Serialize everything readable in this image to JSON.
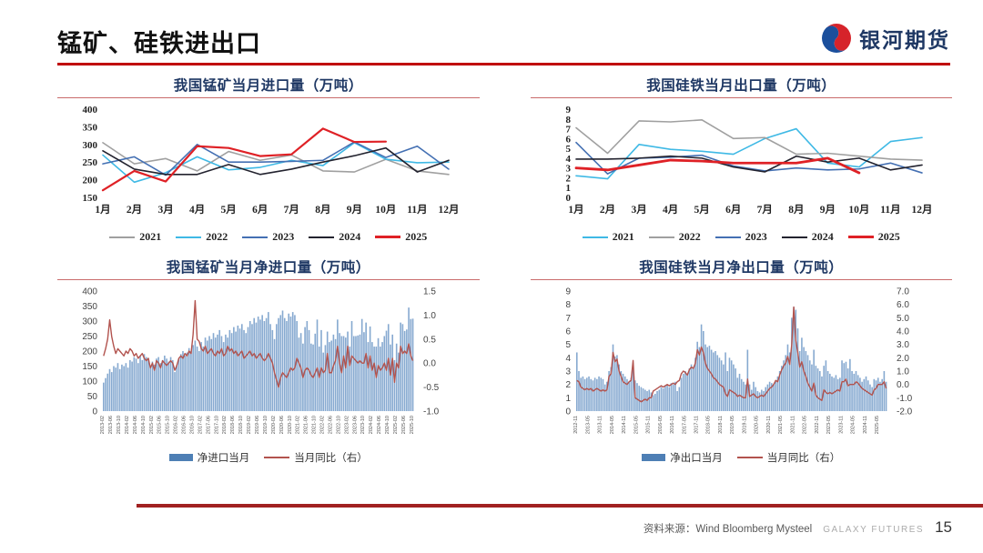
{
  "header": {
    "title": "锰矿、硅铁进出口",
    "logo_text": "银河期货"
  },
  "footer": {
    "source": "资料来源：Wind Bloomberg Mysteel",
    "brand": "GALAXY FUTURES",
    "page_number": "15"
  },
  "colors": {
    "accent_red": "#C00000",
    "title_navy": "#1F3864",
    "logo_blue": "#1B4F9C",
    "logo_red": "#D6232A"
  },
  "chart_data": [
    {
      "type": "line",
      "title": "我国锰矿当月进口量（万吨）",
      "categories": [
        "1月",
        "2月",
        "3月",
        "4月",
        "5月",
        "6月",
        "7月",
        "8月",
        "9月",
        "10月",
        "11月",
        "12月"
      ],
      "ylim": [
        150,
        400
      ],
      "yticks": [
        400,
        350,
        300,
        250,
        200,
        150
      ],
      "series": [
        {
          "name": "2021",
          "color": "#A0A0A0",
          "values": [
            305,
            245,
            260,
            225,
            280,
            255,
            270,
            225,
            222,
            258,
            225,
            215
          ]
        },
        {
          "name": "2022",
          "color": "#3FB9E5",
          "values": [
            270,
            193,
            220,
            265,
            228,
            235,
            255,
            240,
            305,
            258,
            248,
            250
          ]
        },
        {
          "name": "2023",
          "color": "#4470B3",
          "values": [
            245,
            265,
            213,
            300,
            250,
            250,
            252,
            255,
            307,
            263,
            295,
            230
          ]
        },
        {
          "name": "2024",
          "color": "#23232F",
          "values": [
            282,
            230,
            215,
            215,
            243,
            215,
            230,
            250,
            268,
            290,
            222,
            255
          ]
        },
        {
          "name": "2025",
          "color": "#DF2126",
          "width": 2.2,
          "values": [
            170,
            225,
            195,
            295,
            290,
            267,
            272,
            345,
            307,
            308
          ]
        }
      ]
    },
    {
      "type": "line",
      "title": "我国硅铁当月出口量（万吨）",
      "categories": [
        "1月",
        "2月",
        "3月",
        "4月",
        "5月",
        "6月",
        "7月",
        "8月",
        "9月",
        "10月",
        "11月",
        "12月"
      ],
      "ylim": [
        0,
        9
      ],
      "yticks": [
        9,
        8,
        7,
        6,
        5,
        4,
        3,
        2,
        1,
        0
      ],
      "series": [
        {
          "name": "2021",
          "color": "#3FB9E5",
          "values": [
            2.2,
            1.9,
            5.4,
            4.9,
            4.7,
            4.4,
            6.0,
            7.0,
            3.5,
            3.1,
            5.7,
            6.1
          ]
        },
        {
          "name": "2022",
          "color": "#A0A0A0",
          "values": [
            7.1,
            4.5,
            7.8,
            7.7,
            7.9,
            6.0,
            6.1,
            4.4,
            4.5,
            4.2,
            3.9,
            3.8
          ]
        },
        {
          "name": "2023",
          "color": "#4470B3",
          "values": [
            5.6,
            2.4,
            4.0,
            4.1,
            4.3,
            3.2,
            2.7,
            3.0,
            2.8,
            2.9,
            3.5,
            2.5
          ]
        },
        {
          "name": "2024",
          "color": "#23232F",
          "values": [
            3.9,
            3.9,
            4.0,
            4.2,
            4.0,
            3.1,
            2.6,
            4.2,
            3.6,
            4.0,
            2.8,
            3.3
          ]
        },
        {
          "name": "2025",
          "color": "#DF2126",
          "width": 2.8,
          "values": [
            3.0,
            2.8,
            3.3,
            3.8,
            3.7,
            3.5,
            3.5,
            3.5,
            4.0,
            2.5
          ]
        }
      ]
    },
    {
      "type": "combo",
      "title": "我国锰矿当月净进口量（万吨）",
      "left_ylim": [
        0,
        400
      ],
      "left_yticks": [
        "400",
        "350",
        "300",
        "250",
        "200",
        "150",
        "100",
        "50",
        "0"
      ],
      "right_ylim": [
        -1.0,
        1.5
      ],
      "right_yticks": [
        "1.5",
        "1.0",
        "0.5",
        "0.0",
        "-0.5",
        "-1.0"
      ],
      "tick_every": 4,
      "x_tick_labels": [
        "2013-02",
        "2013-06",
        "2013-10",
        "2014-02",
        "2014-06",
        "2014-10",
        "2015-02",
        "2015-06",
        "2015-10",
        "2016-02",
        "2016-06",
        "2016-10",
        "2017-02",
        "2017-06",
        "2017-10",
        "2018-02",
        "2018-06",
        "2018-10",
        "2019-02",
        "2019-06",
        "2019-10",
        "2020-02",
        "2020-06",
        "2020-10",
        "2021-02",
        "2021-06",
        "2021-10",
        "2022-02",
        "2022-06",
        "2022-10",
        "2023-02",
        "2023-06",
        "2023-10",
        "2024-02",
        "2024-06",
        "2024-10",
        "2025-02",
        "2025-06",
        "2025-10"
      ],
      "bar_color": "#86A9D0",
      "bar_legend_color": "#4E7FB5",
      "line_color": "#B2534E",
      "legend_bar": "净进口当月",
      "legend_line": "当月同比（右）",
      "bars": [
        95,
        110,
        125,
        140,
        130,
        150,
        145,
        160,
        140,
        155,
        150,
        160,
        145,
        170,
        165,
        180,
        175,
        160,
        185,
        170,
        190,
        180,
        175,
        150,
        165,
        155,
        175,
        180,
        160,
        170,
        185,
        175,
        165,
        180,
        170,
        130,
        155,
        175,
        190,
        200,
        185,
        195,
        210,
        200,
        220,
        235,
        215,
        200,
        230,
        215,
        245,
        235,
        250,
        240,
        260,
        245,
        255,
        270,
        250,
        230,
        255,
        245,
        270,
        260,
        280,
        265,
        285,
        275,
        290,
        270,
        260,
        280,
        300,
        290,
        310,
        295,
        315,
        305,
        320,
        300,
        310,
        330,
        290,
        270,
        240,
        290,
        310,
        320,
        335,
        310,
        300,
        325,
        315,
        330,
        320,
        300,
        245,
        260,
        225,
        280,
        300,
        270,
        225,
        222,
        258,
        305,
        215,
        270,
        195,
        220,
        265,
        230,
        235,
        255,
        240,
        305,
        260,
        250,
        250,
        245,
        265,
        215,
        300,
        250,
        250,
        252,
        255,
        307,
        263,
        295,
        230,
        282,
        230,
        215,
        215,
        243,
        215,
        230,
        250,
        268,
        290,
        222,
        255,
        170,
        225,
        195,
        295,
        290,
        267,
        272,
        345,
        307,
        308
      ],
      "line": [
        0.15,
        0.3,
        0.5,
        0.9,
        0.55,
        0.35,
        0.2,
        0.3,
        0.25,
        0.2,
        0.15,
        0.25,
        0.2,
        0.3,
        0.25,
        0.15,
        0.2,
        0.1,
        0.15,
        0.2,
        0.1,
        0.05,
        0.1,
        -0.1,
        0.0,
        -0.15,
        0.05,
        0.0,
        -0.1,
        0.05,
        0.0,
        -0.05,
        0.0,
        0.05,
        0.0,
        -0.15,
        -0.05,
        0.1,
        0.15,
        0.1,
        0.2,
        0.15,
        0.25,
        0.2,
        0.6,
        1.3,
        0.5,
        0.45,
        0.3,
        0.25,
        0.35,
        0.2,
        0.25,
        0.3,
        0.2,
        0.15,
        0.25,
        0.2,
        0.3,
        0.15,
        0.2,
        0.35,
        0.25,
        0.3,
        0.2,
        0.25,
        0.15,
        0.2,
        0.25,
        0.1,
        0.15,
        0.2,
        0.25,
        0.15,
        0.2,
        0.1,
        0.15,
        0.2,
        0.1,
        0.05,
        0.1,
        0.2,
        0.1,
        0.0,
        -0.2,
        -0.35,
        -0.5,
        -0.3,
        -0.2,
        -0.25,
        -0.3,
        -0.2,
        -0.1,
        -0.15,
        -0.1,
        0.1,
        0.0,
        -0.1,
        -0.3,
        -0.15,
        -0.1,
        -0.15,
        -0.25,
        -0.3,
        -0.2,
        -0.1,
        -0.3,
        -0.1,
        -0.2,
        -0.15,
        0.2,
        -0.2,
        -0.2,
        -0.05,
        0.05,
        0.35,
        0.0,
        -0.2,
        0.15,
        -0.1,
        0.35,
        -0.05,
        0.15,
        0.1,
        0.05,
        0.0,
        0.05,
        0.0,
        0.0,
        0.2,
        -0.1,
        0.15,
        -0.15,
        0.0,
        -0.3,
        -0.05,
        -0.15,
        -0.1,
        0.0,
        -0.15,
        0.1,
        -0.25,
        0.1,
        -0.4,
        0.0,
        -0.1,
        0.35,
        0.2,
        0.25,
        0.2,
        0.4,
        0.15,
        0.05
      ]
    },
    {
      "type": "combo",
      "title": "我国硅铁当月净出口量（万吨）",
      "left_ylim": [
        0,
        9
      ],
      "left_yticks": [
        "9",
        "8",
        "7",
        "6",
        "5",
        "4",
        "3",
        "2",
        "1",
        "0"
      ],
      "right_ylim": [
        -2.0,
        7.0
      ],
      "right_yticks": [
        "7.0",
        "6.0",
        "5.0",
        "4.0",
        "3.0",
        "2.0",
        "1.0",
        "0.0",
        "-1.0",
        "-2.0"
      ],
      "tick_every": 6,
      "x_tick_labels": [
        "2012-11",
        "2013-05",
        "2013-11",
        "2014-05",
        "2014-11",
        "2015-05",
        "2015-11",
        "2016-05",
        "2016-11",
        "2017-05",
        "2017-11",
        "2018-05",
        "2018-11",
        "2019-05",
        "2019-11",
        "2020-05",
        "2020-11",
        "2021-05",
        "2021-11",
        "2022-05",
        "2022-11",
        "2023-05",
        "2023-11",
        "2024-05",
        "2024-11",
        "2025-05"
      ],
      "bar_color": "#86A9D0",
      "bar_legend_color": "#4E7FB5",
      "line_color": "#B2534E",
      "legend_bar": "净出口当月",
      "legend_line": "当月同比（右）",
      "bars": [
        4.4,
        3.0,
        2.5,
        2.6,
        2.4,
        2.5,
        2.6,
        2.4,
        2.3,
        2.5,
        2.4,
        2.6,
        2.5,
        2.4,
        2.0,
        2.2,
        3.0,
        3.3,
        5.0,
        4.1,
        4.2,
        3.5,
        3.0,
        2.8,
        2.6,
        2.4,
        2.2,
        2.5,
        3.6,
        2.3,
        2.1,
        1.9,
        1.8,
        1.7,
        1.6,
        1.5,
        1.6,
        1.4,
        1.2,
        1.3,
        1.5,
        1.6,
        1.8,
        1.7,
        1.9,
        2.0,
        1.8,
        2.1,
        2.0,
        2.2,
        1.5,
        1.8,
        2.5,
        2.8,
        3.0,
        2.7,
        3.2,
        3.5,
        3.3,
        4.0,
        5.2,
        4.8,
        6.5,
        6.0,
        5.0,
        4.8,
        4.9,
        4.6,
        4.4,
        4.5,
        4.2,
        4.0,
        3.8,
        3.5,
        4.4,
        3.0,
        4.0,
        3.8,
        3.5,
        3.2,
        2.5,
        2.8,
        2.4,
        2.2,
        2.0,
        4.6,
        2.0,
        1.6,
        2.2,
        1.8,
        1.5,
        1.4,
        1.6,
        1.5,
        1.8,
        2.0,
        2.2,
        2.1,
        2.0,
        2.2,
        2.6,
        3.0,
        3.4,
        3.8,
        4.2,
        5.0,
        4.4,
        7.0,
        7.8,
        7.6,
        6.2,
        4.5,
        5.5,
        4.8,
        4.5,
        4.2,
        3.8,
        3.5,
        4.6,
        3.4,
        3.2,
        3.0,
        2.6,
        3.4,
        3.8,
        3.0,
        2.8,
        2.6,
        2.5,
        2.7,
        2.4,
        2.5,
        3.8,
        3.6,
        3.7,
        3.2,
        3.9,
        3.0,
        2.8,
        3.0,
        2.7,
        2.5,
        2.2,
        2.4,
        2.6,
        2.3,
        2.0,
        1.8,
        2.4,
        2.3,
        2.5,
        2.2,
        2.4,
        3.0,
        2.2
      ],
      "line": [
        0.3,
        0.2,
        -0.2,
        -0.3,
        -0.4,
        -0.3,
        -0.4,
        -0.3,
        -0.5,
        -0.4,
        -0.3,
        -0.4,
        -0.5,
        -0.4,
        -0.5,
        -0.4,
        0.6,
        0.8,
        2.4,
        1.7,
        1.9,
        1.0,
        0.6,
        0.2,
        0.1,
        0.0,
        0.2,
        0.3,
        1.8,
        -1.0,
        -1.1,
        -1.2,
        -1.3,
        -1.2,
        -1.1,
        -1.2,
        -1.0,
        -1.0,
        -0.5,
        -0.4,
        -0.3,
        -0.2,
        -0.1,
        -0.2,
        -0.1,
        0.0,
        -0.1,
        0.0,
        0.1,
        0.0,
        0.2,
        0.3,
        0.8,
        1.0,
        0.9,
        0.7,
        1.1,
        1.3,
        1.2,
        1.6,
        2.6,
        2.2,
        2.8,
        2.4,
        1.6,
        1.2,
        1.0,
        0.8,
        0.5,
        0.4,
        0.2,
        0.0,
        -0.1,
        -0.2,
        -0.7,
        -0.9,
        -0.4,
        -0.5,
        -0.6,
        -0.7,
        -0.9,
        -0.8,
        -0.9,
        -1.0,
        -1.0,
        0.4,
        -0.9,
        -0.8,
        -0.7,
        -0.9,
        -1.0,
        -0.9,
        -0.8,
        -0.9,
        -0.7,
        -0.5,
        -0.3,
        -0.2,
        0.0,
        0.3,
        0.2,
        0.7,
        1.1,
        1.4,
        1.6,
        2.1,
        1.5,
        3.0,
        5.8,
        3.3,
        2.4,
        1.3,
        1.7,
        1.0,
        0.6,
        0.1,
        -0.2,
        -0.5,
        0.1,
        -0.8,
        -1.0,
        -1.1,
        -1.2,
        -0.4,
        -0.6,
        -0.7,
        -0.6,
        -0.7,
        -0.6,
        -0.5,
        -0.4,
        -0.5,
        0.2,
        0.2,
        0.4,
        -0.1,
        0.0,
        0.0,
        0.0,
        0.2,
        0.1,
        -0.1,
        -0.3,
        -0.4,
        -0.5,
        -0.6,
        -0.7,
        -0.8,
        -0.4,
        -0.3,
        0.0,
        0.0,
        0.0,
        0.2,
        -0.3
      ]
    }
  ]
}
